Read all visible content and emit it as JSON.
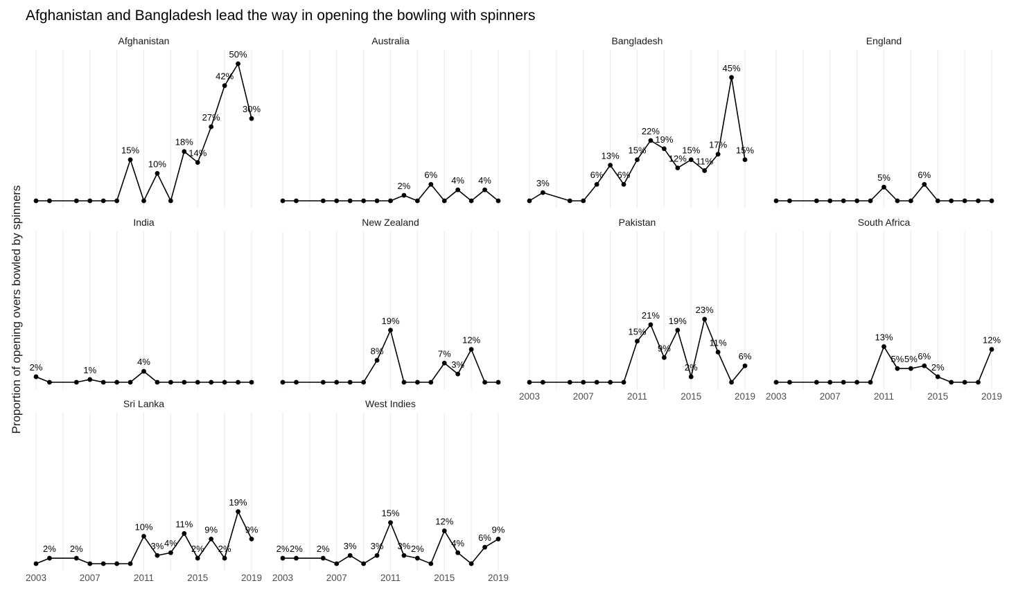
{
  "chart_data": {
    "type": "line",
    "title": "Afghanistan and Bangladesh lead the way in opening the bowling with spinners",
    "ylabel": "Proportion of opening overs bowled by spinners",
    "xlabel": "",
    "grid": true,
    "legend": "none",
    "x_range": [
      2003,
      2019
    ],
    "x_ticks": [
      2003,
      2007,
      2011,
      2015,
      2019
    ],
    "y_range": [
      0,
      0.5
    ],
    "facets": [
      {
        "name": "Afghanistan",
        "x": [
          2003,
          2004,
          2006,
          2007,
          2008,
          2009,
          2010,
          2011,
          2012,
          2013,
          2014,
          2015,
          2016,
          2017,
          2018,
          2019
        ],
        "y": [
          0,
          0,
          0,
          0,
          0,
          0,
          0.15,
          0,
          0.1,
          0,
          0.18,
          0.14,
          0.27,
          0.42,
          0.5,
          0.3
        ],
        "labels": [
          "",
          "",
          "",
          "",
          "",
          "",
          "15%",
          "",
          "10%",
          "",
          "18%",
          "14%",
          "27%",
          "42%",
          "50%",
          "30%"
        ],
        "x_axis": false
      },
      {
        "name": "Australia",
        "x": [
          2003,
          2004,
          2006,
          2007,
          2008,
          2009,
          2010,
          2011,
          2012,
          2013,
          2014,
          2015,
          2016,
          2017,
          2018,
          2019
        ],
        "y": [
          0,
          0,
          0,
          0,
          0,
          0,
          0,
          0,
          0.02,
          0,
          0.06,
          0,
          0.04,
          0,
          0.04,
          0
        ],
        "labels": [
          "",
          "",
          "",
          "",
          "",
          "",
          "",
          "",
          "2%",
          "",
          "6%",
          "",
          "4%",
          "",
          "4%",
          ""
        ],
        "x_axis": false
      },
      {
        "name": "Bangladesh",
        "x": [
          2003,
          2004,
          2006,
          2007,
          2008,
          2009,
          2010,
          2011,
          2012,
          2013,
          2014,
          2015,
          2016,
          2017,
          2018,
          2019
        ],
        "y": [
          0,
          0.03,
          0,
          0,
          0.06,
          0.13,
          0.06,
          0.15,
          0.22,
          0.19,
          0.12,
          0.15,
          0.11,
          0.17,
          0.45,
          0.15
        ],
        "labels": [
          "",
          "3%",
          "",
          "",
          "6%",
          "13%",
          "6%",
          "15%",
          "22%",
          "19%",
          "12%",
          "15%",
          "11%",
          "17%",
          "45%",
          "15%"
        ],
        "x_axis": false
      },
      {
        "name": "England",
        "x": [
          2003,
          2004,
          2006,
          2007,
          2008,
          2009,
          2010,
          2011,
          2012,
          2013,
          2014,
          2015,
          2016,
          2017,
          2018,
          2019
        ],
        "y": [
          0,
          0,
          0,
          0,
          0,
          0,
          0,
          0.05,
          0,
          0,
          0.06,
          0,
          0,
          0,
          0,
          0
        ],
        "labels": [
          "",
          "",
          "",
          "",
          "",
          "",
          "",
          "5%",
          "",
          "",
          "6%",
          "",
          "",
          "",
          "",
          ""
        ],
        "x_axis": false
      },
      {
        "name": "India",
        "x": [
          2003,
          2004,
          2006,
          2007,
          2008,
          2009,
          2010,
          2011,
          2012,
          2013,
          2014,
          2015,
          2016,
          2017,
          2018,
          2019
        ],
        "y": [
          0.02,
          0,
          0,
          0.01,
          0,
          0,
          0,
          0.04,
          0,
          0,
          0,
          0,
          0,
          0,
          0,
          0
        ],
        "labels": [
          "2%",
          "",
          "",
          "1%",
          "",
          "",
          "",
          "4%",
          "",
          "",
          "",
          "",
          "",
          "",
          "",
          ""
        ],
        "x_axis": false
      },
      {
        "name": "New Zealand",
        "x": [
          2003,
          2004,
          2006,
          2007,
          2008,
          2009,
          2010,
          2011,
          2012,
          2013,
          2014,
          2015,
          2016,
          2017,
          2018,
          2019
        ],
        "y": [
          0,
          0,
          0,
          0,
          0,
          0,
          0.08,
          0.19,
          0,
          0,
          0,
          0.07,
          0.03,
          0.12,
          0,
          0
        ],
        "labels": [
          "",
          "",
          "",
          "",
          "",
          "",
          "8%",
          "19%",
          "",
          "",
          "",
          "7%",
          "3%",
          "12%",
          "",
          ""
        ],
        "x_axis": false
      },
      {
        "name": "Pakistan",
        "x": [
          2003,
          2004,
          2006,
          2007,
          2008,
          2009,
          2010,
          2011,
          2012,
          2013,
          2014,
          2015,
          2016,
          2017,
          2018,
          2019
        ],
        "y": [
          0,
          0,
          0,
          0,
          0,
          0,
          0,
          0.15,
          0.21,
          0.09,
          0.19,
          0.02,
          0.23,
          0.11,
          0,
          0.06
        ],
        "labels": [
          "",
          "",
          "",
          "",
          "",
          "",
          "",
          "15%",
          "21%",
          "9%",
          "19%",
          "2%",
          "23%",
          "11%",
          "",
          "6%"
        ],
        "x_axis": true
      },
      {
        "name": "South Africa",
        "x": [
          2003,
          2004,
          2006,
          2007,
          2008,
          2009,
          2010,
          2011,
          2012,
          2013,
          2014,
          2015,
          2016,
          2017,
          2018,
          2019
        ],
        "y": [
          0,
          0,
          0,
          0,
          0,
          0,
          0,
          0.13,
          0.05,
          0.05,
          0.06,
          0.02,
          0,
          0,
          0,
          0.12
        ],
        "labels": [
          "",
          "",
          "",
          "",
          "",
          "",
          "",
          "13%",
          "5%",
          "5%",
          "6%",
          "2%",
          "",
          "",
          "",
          "12%"
        ],
        "x_axis": true
      },
      {
        "name": "Sri Lanka",
        "x": [
          2003,
          2004,
          2006,
          2007,
          2008,
          2009,
          2010,
          2011,
          2012,
          2013,
          2014,
          2015,
          2016,
          2017,
          2018,
          2019
        ],
        "y": [
          0,
          0.02,
          0.02,
          0,
          0,
          0,
          0,
          0.1,
          0.03,
          0.04,
          0.11,
          0.02,
          0.09,
          0.02,
          0.19,
          0.09
        ],
        "labels": [
          "",
          "2%",
          "2%",
          "",
          "",
          "",
          "",
          "10%",
          "3%",
          "4%",
          "11%",
          "2%",
          "9%",
          "2%",
          "19%",
          "9%"
        ],
        "x_axis": true
      },
      {
        "name": "West Indies",
        "x": [
          2003,
          2004,
          2006,
          2007,
          2008,
          2009,
          2010,
          2011,
          2012,
          2013,
          2014,
          2015,
          2016,
          2017,
          2018,
          2019
        ],
        "y": [
          0.02,
          0.02,
          0.02,
          0,
          0.03,
          0,
          0.03,
          0.15,
          0.03,
          0.02,
          0,
          0.12,
          0.04,
          0,
          0.06,
          0.09
        ],
        "labels": [
          "2%",
          "2%",
          "2%",
          "",
          "3%",
          "",
          "3%",
          "15%",
          "3%",
          "2%",
          "",
          "12%",
          "4%",
          "",
          "6%",
          "9%"
        ],
        "x_axis": true
      }
    ]
  }
}
